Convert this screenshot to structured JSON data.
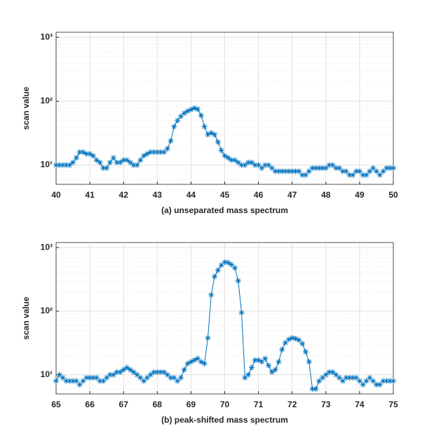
{
  "chart_data": [
    {
      "type": "line",
      "yscale": "log",
      "grid": true,
      "minor_grid": true,
      "marker": "asterisk",
      "color": "#0072bd",
      "xlabel": "(a) unseparated mass spectrum",
      "ylabel": "scan value",
      "xlim": [
        40,
        50
      ],
      "xticks": [
        40,
        41,
        42,
        43,
        44,
        45,
        46,
        47,
        48,
        49,
        50
      ],
      "ylim": [
        5,
        1200
      ],
      "yticks": [
        {
          "value": 10,
          "label": "10¹"
        },
        {
          "value": 100,
          "label": "10²"
        },
        {
          "value": 1000,
          "label": "10³"
        }
      ],
      "x": [
        40.0,
        40.1,
        40.2,
        40.3,
        40.4,
        40.5,
        40.6,
        40.7,
        40.8,
        40.9,
        41.0,
        41.1,
        41.2,
        41.3,
        41.4,
        41.5,
        41.6,
        41.7,
        41.8,
        41.9,
        42.0,
        42.1,
        42.2,
        42.3,
        42.4,
        42.5,
        42.6,
        42.7,
        42.8,
        42.9,
        43.0,
        43.1,
        43.2,
        43.3,
        43.4,
        43.5,
        43.6,
        43.7,
        43.8,
        43.9,
        44.0,
        44.1,
        44.2,
        44.3,
        44.4,
        44.5,
        44.6,
        44.7,
        44.8,
        44.9,
        45.0,
        45.1,
        45.2,
        45.3,
        45.4,
        45.5,
        45.6,
        45.7,
        45.8,
        45.9,
        46.0,
        46.1,
        46.2,
        46.3,
        46.4,
        46.5,
        46.6,
        46.7,
        46.8,
        46.9,
        47.0,
        47.1,
        47.2,
        47.3,
        47.4,
        47.5,
        47.6,
        47.7,
        47.8,
        47.9,
        48.0,
        48.1,
        48.2,
        48.3,
        48.4,
        48.5,
        48.6,
        48.7,
        48.8,
        48.9,
        49.0,
        49.1,
        49.2,
        49.3,
        49.4,
        49.5,
        49.6,
        49.7,
        49.8,
        49.9,
        50.0
      ],
      "values": [
        10,
        10,
        10,
        10,
        10,
        11,
        13,
        16,
        16,
        15,
        15,
        14,
        12,
        11,
        9,
        9,
        11,
        13,
        11,
        11,
        12,
        12,
        11,
        10,
        10,
        12,
        14,
        15,
        16,
        16,
        16,
        16,
        16,
        18,
        24,
        40,
        50,
        58,
        65,
        70,
        74,
        78,
        75,
        60,
        40,
        30,
        32,
        30,
        23,
        17,
        14,
        13,
        12,
        12,
        11,
        10,
        10,
        11,
        11,
        10,
        10,
        9,
        10,
        10,
        9,
        8,
        8,
        8,
        8,
        8,
        8,
        8,
        8,
        7,
        7,
        8,
        9,
        9,
        9,
        9,
        9,
        10,
        10,
        9,
        9,
        8,
        8,
        7,
        7,
        8,
        8,
        7,
        7,
        8,
        9,
        8,
        7,
        8,
        9,
        9,
        9
      ]
    },
    {
      "type": "line",
      "yscale": "log",
      "grid": true,
      "minor_grid": true,
      "marker": "asterisk",
      "color": "#0072bd",
      "xlabel": "(b) peak-shifted mass spectrum",
      "ylabel": "scan value",
      "xlim": [
        65,
        75
      ],
      "xticks": [
        65,
        66,
        67,
        68,
        69,
        70,
        71,
        72,
        73,
        74,
        75
      ],
      "ylim": [
        5,
        1200
      ],
      "yticks": [
        {
          "value": 10,
          "label": "10¹"
        },
        {
          "value": 100,
          "label": "10²"
        },
        {
          "value": 1000,
          "label": "10³"
        }
      ],
      "x": [
        65.0,
        65.1,
        65.2,
        65.3,
        65.4,
        65.5,
        65.6,
        65.7,
        65.8,
        65.9,
        66.0,
        66.1,
        66.2,
        66.3,
        66.4,
        66.5,
        66.6,
        66.7,
        66.8,
        66.9,
        67.0,
        67.1,
        67.2,
        67.3,
        67.4,
        67.5,
        67.6,
        67.7,
        67.8,
        67.9,
        68.0,
        68.1,
        68.2,
        68.3,
        68.4,
        68.5,
        68.6,
        68.7,
        68.8,
        68.9,
        69.0,
        69.1,
        69.2,
        69.3,
        69.4,
        69.5,
        69.6,
        69.7,
        69.8,
        69.9,
        70.0,
        70.1,
        70.2,
        70.3,
        70.4,
        70.5,
        70.6,
        70.7,
        70.8,
        70.9,
        71.0,
        71.1,
        71.2,
        71.3,
        71.4,
        71.5,
        71.6,
        71.7,
        71.8,
        71.9,
        72.0,
        72.1,
        72.2,
        72.3,
        72.4,
        72.5,
        72.6,
        72.7,
        72.8,
        72.9,
        73.0,
        73.1,
        73.2,
        73.3,
        73.4,
        73.5,
        73.6,
        73.7,
        73.8,
        73.9,
        74.0,
        74.1,
        74.2,
        74.3,
        74.4,
        74.5,
        74.6,
        74.7,
        74.8,
        74.9,
        75.0
      ],
      "values": [
        8,
        10,
        9,
        8,
        8,
        8,
        8,
        7,
        8,
        9,
        9,
        9,
        9,
        8,
        8,
        9,
        10,
        10,
        11,
        11,
        12,
        13,
        12,
        11,
        10,
        9,
        8,
        9,
        10,
        11,
        11,
        11,
        11,
        10,
        9,
        9,
        8,
        9,
        12,
        15,
        16,
        17,
        18,
        16,
        15,
        38,
        180,
        350,
        440,
        530,
        590,
        580,
        540,
        480,
        300,
        95,
        9,
        10,
        13,
        17,
        17,
        16,
        18,
        14,
        11,
        12,
        16,
        25,
        32,
        36,
        38,
        37,
        35,
        31,
        23,
        16,
        6,
        6,
        8,
        9,
        10,
        11,
        11,
        10,
        9,
        8,
        9,
        9,
        9,
        9,
        8,
        7,
        8,
        9,
        8,
        7,
        7,
        8,
        8,
        8,
        8
      ]
    }
  ]
}
